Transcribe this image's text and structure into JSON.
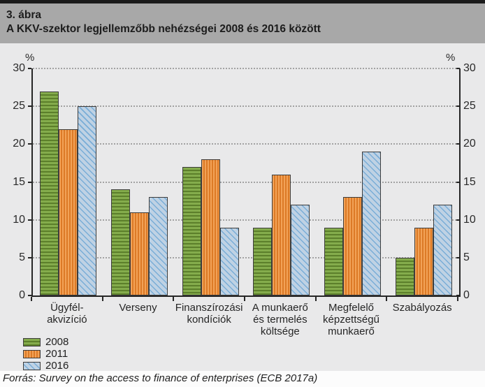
{
  "header": {
    "figure_label": "3. ábra",
    "title": "A KKV-szektor legjellemzőbb nehézségei 2008 és 2016 között"
  },
  "chart_data": {
    "type": "bar",
    "title": "A KKV-szektor legjellemzőbb nehézségei 2008 és 2016 között",
    "unit_label": "%",
    "categories": [
      "Ügyfél-\nakvizíció",
      "Verseny",
      "Finanszírozási\nkondíciók",
      "A munkaerő\nés termelés\nköltsége",
      "Megfelelő\nképzettségű\nmunkaerő",
      "Szabályozás"
    ],
    "series": [
      {
        "name": "2008",
        "pattern": "horizontal",
        "color": "#76a03a",
        "values": [
          27,
          14,
          17,
          9,
          9,
          5
        ]
      },
      {
        "name": "2011",
        "pattern": "vertical",
        "color": "#e5872f",
        "values": [
          22,
          11,
          18,
          16,
          13,
          9
        ]
      },
      {
        "name": "2016",
        "pattern": "diagonal",
        "color": "#b9cfe3",
        "values": [
          25,
          13,
          9,
          12,
          19,
          12
        ]
      }
    ],
    "ylim": [
      0,
      30
    ],
    "yticks": [
      0,
      5,
      10,
      15,
      20,
      25,
      30
    ],
    "grid": "dotted horizontal, dual y-axis 0-30 %",
    "legend_position": "bottom-left"
  },
  "footer": {
    "source": "Forrás: Survey on the access to finance of enterprises (ECB 2017a)"
  }
}
